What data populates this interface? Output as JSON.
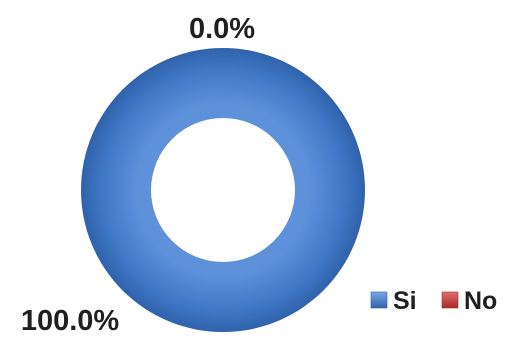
{
  "chart_data": {
    "type": "pie",
    "variant": "doughnut",
    "categories": [
      "Si",
      "No"
    ],
    "values": [
      100.0,
      0.0
    ],
    "data_labels": [
      "100.0%",
      "0.0%"
    ],
    "colors": [
      "#3f78c7",
      "#c83a3a"
    ],
    "title": "",
    "legend": {
      "placement": "bottom-right",
      "entries": [
        "Si",
        "No"
      ]
    }
  }
}
